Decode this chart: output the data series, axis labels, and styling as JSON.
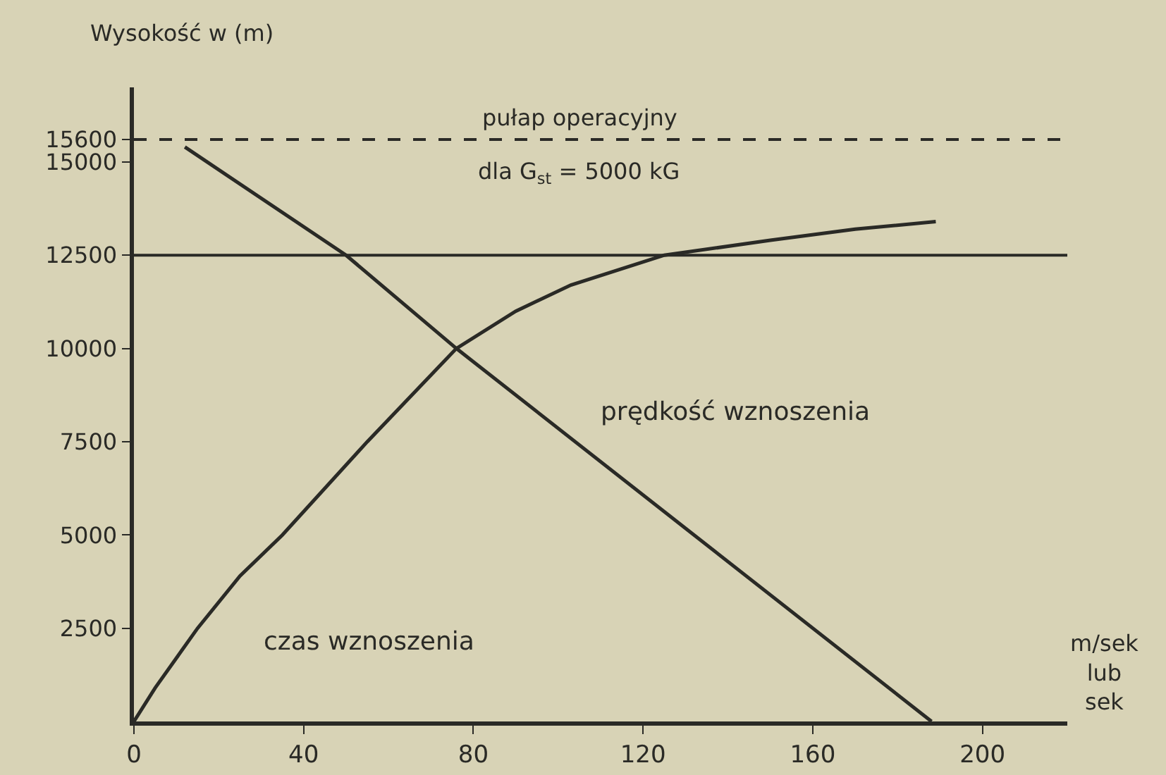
{
  "chart_data": {
    "type": "line",
    "ylabel": "Wysokość w (m)",
    "xlabel": "m/sek lub sek",
    "xlim": [
      0,
      220
    ],
    "xticks": [
      0,
      40,
      80,
      120,
      160,
      200
    ],
    "ylim": [
      0,
      17000
    ],
    "yticks": [
      2500,
      5000,
      7500,
      10000,
      12500,
      15000,
      15600
    ],
    "series": [
      {
        "name": "prędkość wznoszenia",
        "color": "#2a2a26",
        "x": [
          12,
          50,
          76,
          188
        ],
        "values": [
          15400,
          12500,
          10000,
          0
        ]
      },
      {
        "name": "czas wznoszenia",
        "color": "#2a2a26",
        "x": [
          0,
          5,
          15,
          25,
          35,
          55,
          76,
          90,
          103,
          125,
          150,
          170,
          189
        ],
        "values": [
          0,
          900,
          2500,
          3900,
          5000,
          7500,
          10000,
          11000,
          11700,
          12500,
          12900,
          13200,
          13400
        ]
      }
    ],
    "ref_lines": [
      {
        "axis": "y",
        "value": 15600,
        "label": "pułap operacyjny",
        "line_style": "dashed",
        "color": "#2a2a26"
      },
      {
        "axis": "y",
        "value": 12500,
        "label": null,
        "line_style": "solid",
        "color": "#2a2a26"
      }
    ],
    "annotations": [
      "dla G$_{st}$ = 5000 kG"
    ],
    "grid": false,
    "legend": false,
    "marker": "none",
    "line_style": "solid"
  }
}
